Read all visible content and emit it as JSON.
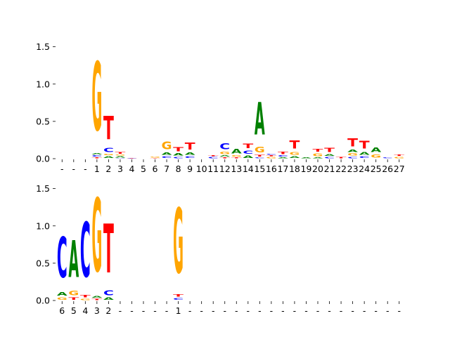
{
  "chart_data": [
    {
      "type": "sequence-logo",
      "title": "",
      "xlabel": "",
      "ylabel": "",
      "ylim": [
        0,
        1.6
      ],
      "yticks": [
        0.0,
        0.5,
        1.0,
        1.5
      ],
      "ytick_labels": [
        "0.0",
        "0.5",
        "1.0",
        "1.5"
      ],
      "xtick_labels": [
        "-",
        "-",
        "-",
        "1",
        "2",
        "3",
        "4",
        "5",
        "6",
        "7",
        "8",
        "9",
        "10",
        "11",
        "12",
        "13",
        "14",
        "15",
        "16",
        "17",
        "18",
        "19",
        "20",
        "21",
        "22",
        "23",
        "24",
        "25",
        "26",
        "27"
      ],
      "columns": [
        [],
        [],
        [],
        [
          [
            "T",
            0.02
          ],
          [
            "C",
            0.03
          ],
          [
            "A",
            0.03
          ],
          [
            "G",
            1.48
          ]
        ],
        [
          [
            "A",
            0.04
          ],
          [
            "G",
            0.03
          ],
          [
            "C",
            0.09
          ],
          [
            "T",
            0.5
          ]
        ],
        [
          [
            "C",
            0.01
          ],
          [
            "A",
            0.03
          ],
          [
            "G",
            0.02
          ],
          [
            "T",
            0.04
          ]
        ],
        [
          [
            "C",
            0.005
          ],
          [
            "T",
            0.01
          ]
        ],
        [],
        [
          [
            "T",
            0.01
          ],
          [
            "G",
            0.02
          ]
        ],
        [
          [
            "C",
            0.04
          ],
          [
            "A",
            0.05
          ],
          [
            "G",
            0.17
          ]
        ],
        [
          [
            "C",
            0.03
          ],
          [
            "A",
            0.05
          ],
          [
            "T",
            0.09
          ]
        ],
        [
          [
            "C",
            0.04
          ],
          [
            "A",
            0.05
          ],
          [
            "T",
            0.15
          ]
        ],
        [],
        [
          [
            "C",
            0.03
          ],
          [
            "T",
            0.02
          ]
        ],
        [
          [
            "T",
            0.02
          ],
          [
            "A",
            0.03
          ],
          [
            "G",
            0.05
          ],
          [
            "C",
            0.13
          ]
        ],
        [
          [
            "T",
            0.02
          ],
          [
            "G",
            0.03
          ],
          [
            "A",
            0.1
          ]
        ],
        [
          [
            "A",
            0.05
          ],
          [
            "C",
            0.07
          ],
          [
            "T",
            0.1
          ]
        ],
        [
          [
            "C",
            0.02
          ],
          [
            "T",
            0.04
          ],
          [
            "G",
            0.12
          ],
          [
            "A",
            0.7
          ]
        ],
        [
          [
            "G",
            0.03
          ],
          [
            "T",
            0.02
          ],
          [
            "C",
            0.02
          ]
        ],
        [
          [
            "A",
            0.02
          ],
          [
            "C",
            0.03
          ],
          [
            "T",
            0.05
          ]
        ],
        [
          [
            "A",
            0.04
          ],
          [
            "G",
            0.06
          ],
          [
            "T",
            0.18
          ]
        ],
        [
          [
            "A",
            0.02
          ]
        ],
        [
          [
            "A",
            0.02
          ],
          [
            "G",
            0.06
          ],
          [
            "T",
            0.06
          ]
        ],
        [
          [
            "C",
            0.03
          ],
          [
            "A",
            0.04
          ],
          [
            "T",
            0.09
          ]
        ],
        [
          [
            "T",
            0.03
          ]
        ],
        [
          [
            "C",
            0.03
          ],
          [
            "G",
            0.05
          ],
          [
            "A",
            0.05
          ],
          [
            "T",
            0.18
          ]
        ],
        [
          [
            "C",
            0.04
          ],
          [
            "A",
            0.06
          ],
          [
            "T",
            0.17
          ]
        ],
        [
          [
            "G",
            0.07
          ],
          [
            "A",
            0.1
          ]
        ],
        [
          [
            "C",
            0.02
          ]
        ],
        [
          [
            "G",
            0.03
          ],
          [
            "T",
            0.03
          ]
        ]
      ]
    },
    {
      "type": "sequence-logo",
      "title": "",
      "xlabel": "",
      "ylabel": "",
      "ylim": [
        0,
        1.6
      ],
      "yticks": [
        0.0,
        0.5,
        1.0,
        1.5
      ],
      "ytick_labels": [
        "0.0",
        "0.5",
        "1.0",
        "1.5"
      ],
      "xtick_labels": [
        "6",
        "5",
        "4",
        "3",
        "2",
        "-",
        "-",
        "-",
        "-",
        "-",
        "1",
        "-",
        "-",
        "-",
        "-",
        "-",
        "-",
        "-",
        "-",
        "-",
        "-",
        "-",
        "-",
        "-",
        "-",
        "-",
        "-",
        "-",
        "-",
        "-"
      ],
      "columns": [
        [
          [
            "G",
            0.05
          ],
          [
            "A",
            0.08
          ],
          [
            "C",
            0.87
          ]
        ],
        [
          [
            "T",
            0.05
          ],
          [
            "G",
            0.1
          ],
          [
            "A",
            0.8
          ]
        ],
        [
          [
            "G",
            0.03
          ],
          [
            "T",
            0.05
          ],
          [
            "C",
            1.18
          ]
        ],
        [
          [
            "T",
            0.03
          ],
          [
            "A",
            0.04
          ],
          [
            "G",
            1.58
          ]
        ],
        [
          [
            "A",
            0.05
          ],
          [
            "C",
            0.11
          ],
          [
            "T",
            1.05
          ]
        ],
        [],
        [],
        [],
        [],
        [],
        [
          [
            "C",
            0.04
          ],
          [
            "T",
            0.05
          ],
          [
            "G",
            1.39
          ]
        ],
        [],
        [],
        [],
        [],
        [],
        [],
        [],
        [],
        [],
        [],
        [],
        [],
        [],
        [],
        [],
        [],
        [],
        [],
        []
      ]
    }
  ],
  "colors": {
    "A": "#008000",
    "C": "#0000ff",
    "G": "#ffa500",
    "T": "#ff0000"
  }
}
